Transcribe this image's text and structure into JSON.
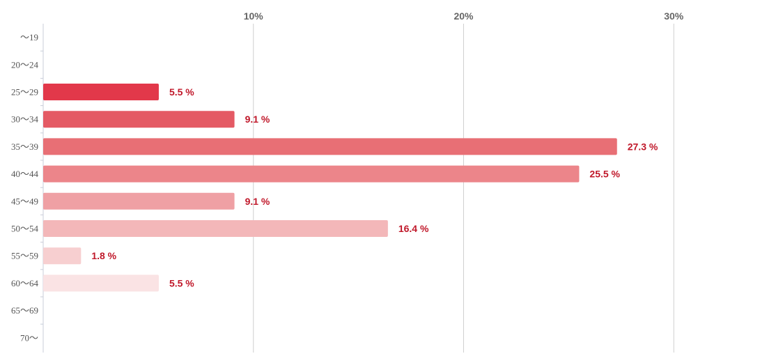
{
  "chart_data": {
    "type": "bar",
    "orientation": "horizontal",
    "title": "",
    "xlabel": "",
    "ylabel": "",
    "categories": [
      "〜19",
      "20〜24",
      "25〜29",
      "30〜34",
      "35〜39",
      "40〜44",
      "45〜49",
      "50〜54",
      "55〜59",
      "60〜64",
      "65〜69",
      "70〜"
    ],
    "values": [
      0,
      0,
      5.5,
      9.1,
      27.3,
      25.5,
      9.1,
      16.4,
      1.8,
      5.5,
      0,
      0
    ],
    "value_labels": [
      "",
      "",
      "5.5 %",
      "9.1 %",
      "27.3 %",
      "25.5 %",
      "9.1 %",
      "16.4 %",
      "1.8 %",
      "5.5 %",
      "",
      ""
    ],
    "xlim": [
      0,
      34.5
    ],
    "x_ticks": [
      10,
      20,
      30
    ],
    "x_tick_labels": [
      "10%",
      "20%",
      "30%"
    ],
    "x_axis_position": "top",
    "grid": true,
    "legend": "none",
    "bar_colors": [
      "#e2384a",
      "#e2384a",
      "#e2384a",
      "#e45a64",
      "#e86f75",
      "#ec858a",
      "#efa0a4",
      "#f3b7b9",
      "#f7cfd0",
      "#fae3e4",
      "#fae3e4",
      "#fae3e4"
    ],
    "label_color": "#c0182a"
  }
}
